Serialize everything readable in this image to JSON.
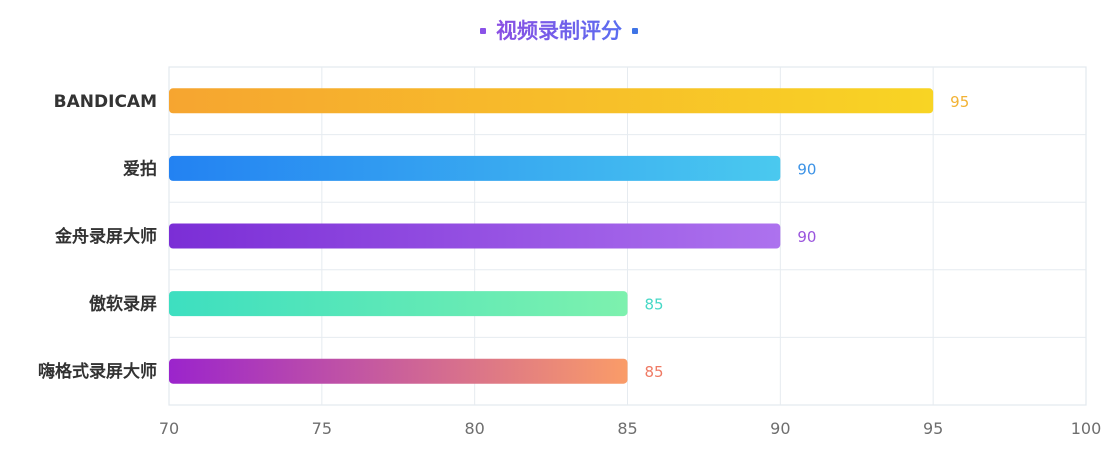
{
  "chart_data": {
    "type": "bar",
    "orientation": "horizontal",
    "title": "视频录制评分",
    "xlabel": "",
    "ylabel": "",
    "categories": [
      "BANDICAM",
      "爱拍",
      "金舟录屏大师",
      "傲软录屏",
      "嗨格式录屏大师"
    ],
    "values": [
      95,
      90,
      90,
      85,
      85
    ],
    "xlim": [
      70,
      100
    ],
    "x_ticks": [
      70,
      75,
      80,
      85,
      90,
      95,
      100
    ],
    "grid": true,
    "legend": "none",
    "data_labels": true,
    "bar_gradients": [
      [
        "#f6a530",
        "#f8d424"
      ],
      [
        "#2382f2",
        "#4ac9ef"
      ],
      [
        "#7b2ed6",
        "#ad72ee"
      ],
      [
        "#3ddfc0",
        "#7df1ae"
      ],
      [
        "#9b24cc",
        "#fa9c68"
      ]
    ],
    "label_colors": [
      "#f2b233",
      "#3d93e6",
      "#9a55dd",
      "#47d8c6",
      "#ef7a64"
    ]
  }
}
